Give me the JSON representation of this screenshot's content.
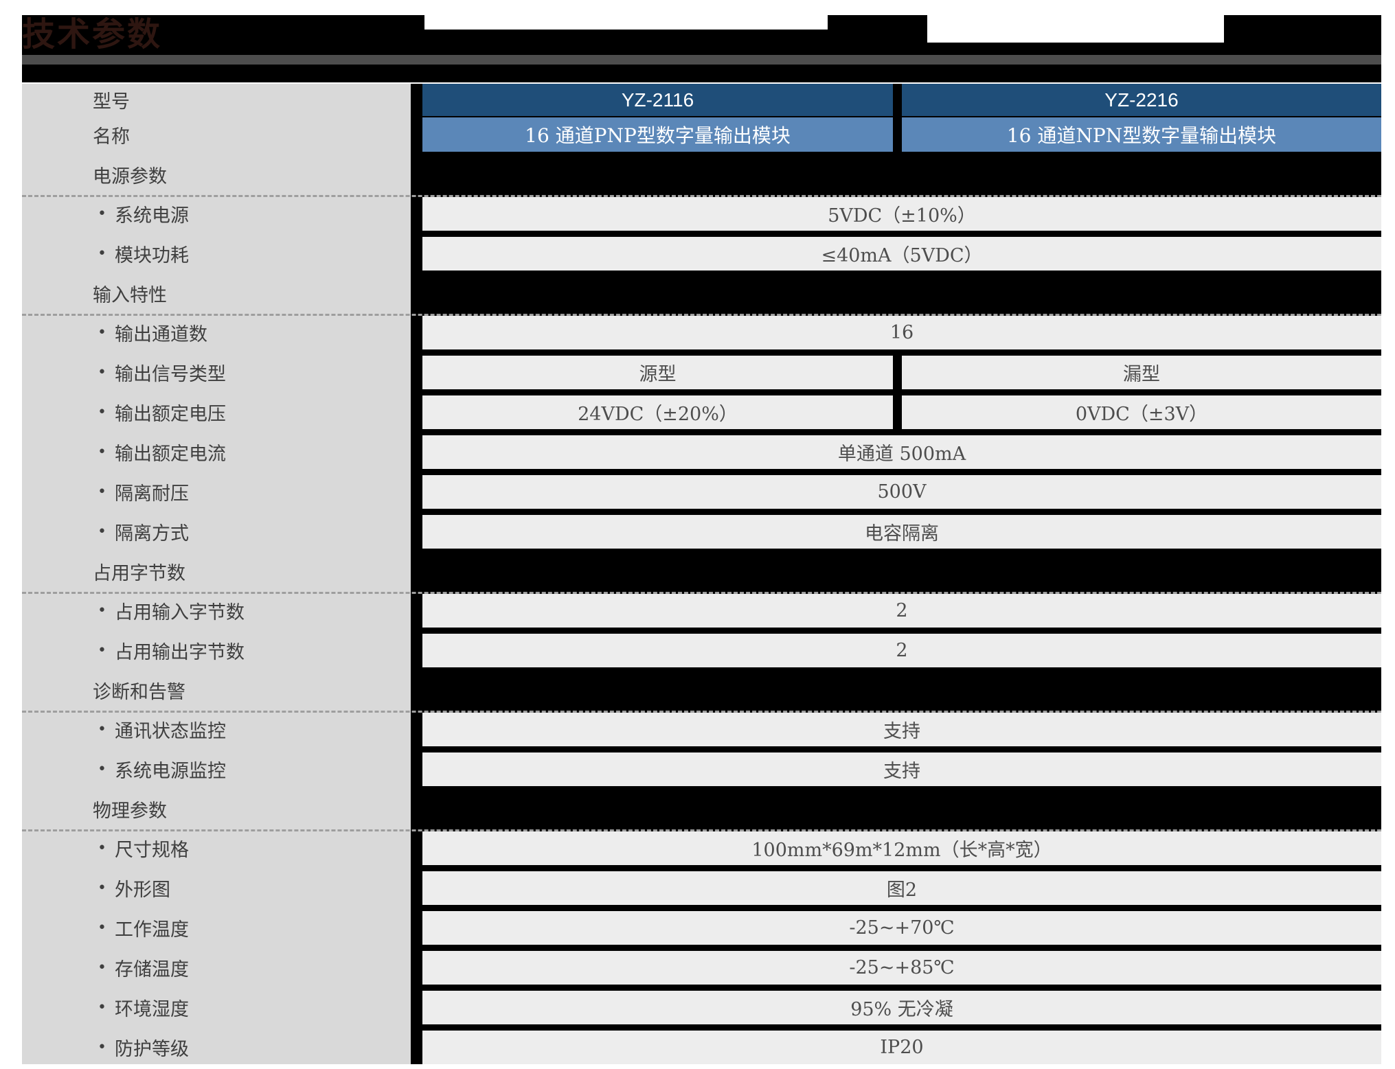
{
  "page": {
    "title": "技术参数"
  },
  "table": {
    "header": {
      "model_label": "型号",
      "name_label": "名称",
      "models": [
        "YZ-2116",
        "YZ-2216"
      ],
      "names": [
        "16 通道PNP型数字量输出模块",
        "16 通道NPN型数字量输出模块"
      ]
    },
    "colors": {
      "model_row_blue": "#1f4e79",
      "name_row_blue": "#5b87b8",
      "left_column_gray": "#d9d9d9",
      "value_cell_gray": "#ededed",
      "banner_black": "#000000",
      "banner_stripe_gray": "#4d4d4d",
      "title_brown": "#2e1611"
    },
    "rows": [
      {
        "type": "section",
        "label": "电源参数"
      },
      {
        "type": "merged",
        "label": "系统电源",
        "value": "5VDC（±10%）"
      },
      {
        "type": "merged",
        "label": "模块功耗",
        "value": "≤40mA（5VDC）"
      },
      {
        "type": "section",
        "label": "输入特性"
      },
      {
        "type": "merged",
        "label": "输出通道数",
        "value": "16"
      },
      {
        "type": "split",
        "label": "输出信号类型",
        "value_a": "源型",
        "value_b": "漏型"
      },
      {
        "type": "split",
        "label": "输出额定电压",
        "value_a": "24VDC（±20%）",
        "value_b": "0VDC（±3V）"
      },
      {
        "type": "merged",
        "label": "输出额定电流",
        "value": "单通道 500mA"
      },
      {
        "type": "merged",
        "label": "隔离耐压",
        "value": "500V"
      },
      {
        "type": "merged",
        "label": "隔离方式",
        "value": "电容隔离"
      },
      {
        "type": "section",
        "label": "占用字节数"
      },
      {
        "type": "merged",
        "label": "占用输入字节数",
        "value": "2"
      },
      {
        "type": "merged",
        "label": "占用输出字节数",
        "value": "2"
      },
      {
        "type": "section",
        "label": "诊断和告警"
      },
      {
        "type": "merged",
        "label": "通讯状态监控",
        "value": "支持"
      },
      {
        "type": "merged",
        "label": "系统电源监控",
        "value": "支持"
      },
      {
        "type": "section",
        "label": "物理参数"
      },
      {
        "type": "merged",
        "label": "尺寸规格",
        "value": "100mm*69m*12mm（长*高*宽）"
      },
      {
        "type": "merged",
        "label": "外形图",
        "value": "图2"
      },
      {
        "type": "merged",
        "label": "工作温度",
        "value": "-25~+70℃"
      },
      {
        "type": "merged",
        "label": "存储温度",
        "value": "-25~+85℃"
      },
      {
        "type": "merged",
        "label": "环境湿度",
        "value": "95% 无冷凝"
      },
      {
        "type": "merged",
        "label": "防护等级",
        "value": "IP20"
      }
    ]
  }
}
